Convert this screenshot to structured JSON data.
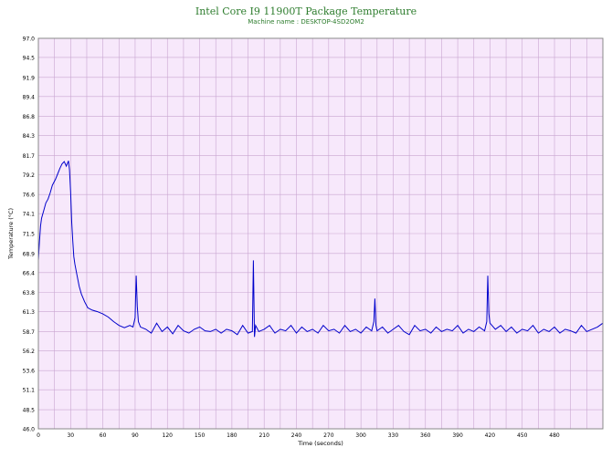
{
  "chart_data": {
    "type": "line",
    "title": "Intel Core I9 11900T Package Temperature",
    "subtitle": "Machine name : DESKTOP-4SD2OM2",
    "xlabel": "Time (seconds)",
    "ylabel": "Temperature (°C)",
    "xlim": [
      0,
      525
    ],
    "ylim": [
      46.0,
      97.0
    ],
    "x_ticks": [
      0,
      30,
      60,
      90,
      120,
      150,
      180,
      210,
      240,
      270,
      300,
      330,
      360,
      390,
      420,
      450,
      480
    ],
    "y_ticks": [
      46.0,
      48.5,
      51.1,
      53.6,
      56.2,
      58.7,
      61.3,
      63.8,
      66.4,
      68.9,
      71.5,
      74.1,
      76.6,
      79.2,
      81.7,
      84.3,
      86.8,
      89.4,
      91.9,
      94.5,
      97.0
    ],
    "grid": true,
    "plot_background": "#f7e8fb",
    "grid_color": "#c9a6d1",
    "line_color": "#0000cc",
    "title_color": "#2e7d2e",
    "series": [
      {
        "x": [
          0,
          1,
          2,
          3,
          5,
          7,
          9,
          11,
          13,
          16,
          18,
          20,
          22,
          24,
          26,
          28,
          29,
          30,
          31,
          32,
          33,
          34,
          36,
          38,
          40,
          43,
          46,
          50,
          55,
          60,
          65,
          70,
          75,
          80,
          85,
          88,
          90,
          91,
          92,
          93,
          95,
          100,
          105,
          110,
          115,
          120,
          125,
          130,
          135,
          140,
          145,
          150,
          155,
          160,
          165,
          170,
          175,
          180,
          185,
          190,
          195,
          199,
          200,
          201,
          202,
          205,
          210,
          215,
          220,
          225,
          230,
          235,
          240,
          245,
          250,
          255,
          260,
          265,
          270,
          275,
          280,
          285,
          290,
          295,
          300,
          305,
          310,
          312,
          313,
          314,
          315,
          320,
          325,
          330,
          335,
          340,
          345,
          350,
          355,
          360,
          365,
          370,
          375,
          380,
          385,
          390,
          395,
          400,
          405,
          410,
          415,
          417,
          418,
          419,
          420,
          425,
          430,
          435,
          440,
          445,
          450,
          455,
          460,
          465,
          470,
          475,
          480,
          485,
          490,
          495,
          500,
          505,
          510,
          515,
          520,
          525
        ],
        "y": [
          68.0,
          70.5,
          72.5,
          73.5,
          74.5,
          75.5,
          76.0,
          76.8,
          77.8,
          78.6,
          79.3,
          80.0,
          80.6,
          80.9,
          80.3,
          81.0,
          79.8,
          77.0,
          73.0,
          70.5,
          68.5,
          67.5,
          66.0,
          64.6,
          63.6,
          62.6,
          61.8,
          61.5,
          61.3,
          61.0,
          60.6,
          60.0,
          59.5,
          59.2,
          59.5,
          59.3,
          60.5,
          66.0,
          62.0,
          60.0,
          59.3,
          59.0,
          58.5,
          59.8,
          58.7,
          59.3,
          58.4,
          59.5,
          58.8,
          58.5,
          59.0,
          59.3,
          58.8,
          58.7,
          59.0,
          58.5,
          59.0,
          58.8,
          58.3,
          59.5,
          58.5,
          58.7,
          68.0,
          58.0,
          59.5,
          58.7,
          59.0,
          59.5,
          58.5,
          59.0,
          58.8,
          59.5,
          58.5,
          59.3,
          58.7,
          59.0,
          58.5,
          59.5,
          58.8,
          59.0,
          58.5,
          59.5,
          58.7,
          59.0,
          58.5,
          59.3,
          58.8,
          60.0,
          63.0,
          59.5,
          58.8,
          59.3,
          58.5,
          59.0,
          59.5,
          58.7,
          58.3,
          59.5,
          58.8,
          59.0,
          58.5,
          59.3,
          58.7,
          59.0,
          58.8,
          59.5,
          58.5,
          59.0,
          58.7,
          59.3,
          58.8,
          60.0,
          66.0,
          61.0,
          59.8,
          59.0,
          59.5,
          58.7,
          59.3,
          58.5,
          59.0,
          58.8,
          59.5,
          58.5,
          59.0,
          58.7,
          59.3,
          58.5,
          59.0,
          58.8,
          58.5,
          59.5,
          58.7,
          59.0,
          59.3,
          59.8
        ]
      }
    ]
  }
}
